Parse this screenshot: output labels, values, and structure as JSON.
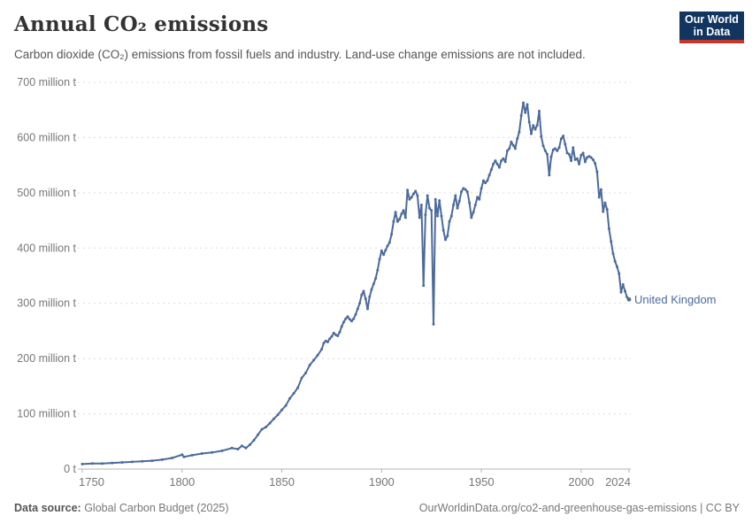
{
  "header": {
    "title": "Annual CO₂ emissions",
    "subtitle": "Carbon dioxide (CO₂) emissions from fossil fuels and industry. Land-use change emissions are not included."
  },
  "logo": {
    "line1": "Our World",
    "line2": "in Data"
  },
  "footer": {
    "source_label": "Data source:",
    "source_value": " Global Carbon Budget (2025)",
    "link": "OurWorldinData.org/co2-and-greenhouse-gas-emissions | CC BY"
  },
  "colors": {
    "line": "#4c6a9c",
    "grid": "#dddddd",
    "axis": "#b3b3b3",
    "tick_text": "#777777"
  },
  "chart_data": {
    "type": "line",
    "title": "Annual CO₂ emissions",
    "xlabel": "",
    "ylabel": "",
    "xlim": [
      1750,
      2024
    ],
    "ylim": [
      0,
      700
    ],
    "xticks": [
      1750,
      1800,
      1850,
      1900,
      1950,
      2000,
      2024
    ],
    "yticks": [
      {
        "value": 0,
        "label": "0 t"
      },
      {
        "value": 100,
        "label": "100 million t"
      },
      {
        "value": 200,
        "label": "200 million t"
      },
      {
        "value": 300,
        "label": "300 million t"
      },
      {
        "value": 400,
        "label": "400 million t"
      },
      {
        "value": 500,
        "label": "500 million t"
      },
      {
        "value": 600,
        "label": "600 million t"
      },
      {
        "value": 700,
        "label": "700 million t"
      }
    ],
    "grid": "horizontal-dashed",
    "legend_position": "end-of-line-label",
    "series": [
      {
        "name": "United Kingdom",
        "unit": "t",
        "points": [
          [
            1750,
            9
          ],
          [
            1755,
            10
          ],
          [
            1760,
            10
          ],
          [
            1765,
            11
          ],
          [
            1770,
            12
          ],
          [
            1775,
            13
          ],
          [
            1780,
            14
          ],
          [
            1785,
            15
          ],
          [
            1790,
            17
          ],
          [
            1795,
            20
          ],
          [
            1800,
            26
          ],
          [
            1801,
            22
          ],
          [
            1805,
            25
          ],
          [
            1810,
            28
          ],
          [
            1815,
            30
          ],
          [
            1820,
            33
          ],
          [
            1825,
            38
          ],
          [
            1828,
            36
          ],
          [
            1830,
            42
          ],
          [
            1832,
            38
          ],
          [
            1834,
            44
          ],
          [
            1836,
            52
          ],
          [
            1838,
            62
          ],
          [
            1840,
            72
          ],
          [
            1842,
            76
          ],
          [
            1844,
            83
          ],
          [
            1846,
            91
          ],
          [
            1848,
            98
          ],
          [
            1850,
            107
          ],
          [
            1852,
            115
          ],
          [
            1854,
            128
          ],
          [
            1856,
            137
          ],
          [
            1858,
            147
          ],
          [
            1860,
            165
          ],
          [
            1862,
            174
          ],
          [
            1864,
            188
          ],
          [
            1866,
            197
          ],
          [
            1868,
            206
          ],
          [
            1870,
            217
          ],
          [
            1871,
            228
          ],
          [
            1872,
            232
          ],
          [
            1873,
            230
          ],
          [
            1874,
            236
          ],
          [
            1875,
            240
          ],
          [
            1876,
            246
          ],
          [
            1877,
            243
          ],
          [
            1878,
            241
          ],
          [
            1879,
            248
          ],
          [
            1880,
            258
          ],
          [
            1881,
            266
          ],
          [
            1882,
            272
          ],
          [
            1883,
            276
          ],
          [
            1884,
            271
          ],
          [
            1885,
            268
          ],
          [
            1886,
            272
          ],
          [
            1887,
            280
          ],
          [
            1888,
            290
          ],
          [
            1889,
            300
          ],
          [
            1890,
            315
          ],
          [
            1891,
            322
          ],
          [
            1892,
            308
          ],
          [
            1893,
            290
          ],
          [
            1894,
            312
          ],
          [
            1895,
            325
          ],
          [
            1896,
            335
          ],
          [
            1897,
            345
          ],
          [
            1898,
            360
          ],
          [
            1899,
            380
          ],
          [
            1900,
            395
          ],
          [
            1901,
            388
          ],
          [
            1902,
            396
          ],
          [
            1903,
            404
          ],
          [
            1904,
            410
          ],
          [
            1905,
            425
          ],
          [
            1906,
            448
          ],
          [
            1907,
            465
          ],
          [
            1908,
            448
          ],
          [
            1909,
            452
          ],
          [
            1910,
            462
          ],
          [
            1911,
            468
          ],
          [
            1912,
            455
          ],
          [
            1913,
            505
          ],
          [
            1914,
            488
          ],
          [
            1915,
            492
          ],
          [
            1916,
            498
          ],
          [
            1917,
            503
          ],
          [
            1918,
            495
          ],
          [
            1919,
            455
          ],
          [
            1920,
            478
          ],
          [
            1921,
            332
          ],
          [
            1922,
            460
          ],
          [
            1923,
            495
          ],
          [
            1924,
            472
          ],
          [
            1925,
            468
          ],
          [
            1926,
            262
          ],
          [
            1927,
            488
          ],
          [
            1928,
            458
          ],
          [
            1929,
            486
          ],
          [
            1930,
            458
          ],
          [
            1931,
            432
          ],
          [
            1932,
            415
          ],
          [
            1933,
            422
          ],
          [
            1934,
            448
          ],
          [
            1935,
            458
          ],
          [
            1936,
            478
          ],
          [
            1937,
            495
          ],
          [
            1938,
            472
          ],
          [
            1939,
            485
          ],
          [
            1940,
            502
          ],
          [
            1941,
            508
          ],
          [
            1942,
            506
          ],
          [
            1943,
            502
          ],
          [
            1944,
            482
          ],
          [
            1945,
            455
          ],
          [
            1946,
            465
          ],
          [
            1947,
            478
          ],
          [
            1948,
            492
          ],
          [
            1949,
            488
          ],
          [
            1950,
            508
          ],
          [
            1951,
            522
          ],
          [
            1952,
            518
          ],
          [
            1953,
            522
          ],
          [
            1954,
            532
          ],
          [
            1955,
            542
          ],
          [
            1956,
            552
          ],
          [
            1957,
            558
          ],
          [
            1958,
            552
          ],
          [
            1959,
            546
          ],
          [
            1960,
            558
          ],
          [
            1961,
            562
          ],
          [
            1962,
            556
          ],
          [
            1963,
            576
          ],
          [
            1964,
            580
          ],
          [
            1965,
            592
          ],
          [
            1966,
            586
          ],
          [
            1967,
            580
          ],
          [
            1968,
            598
          ],
          [
            1969,
            610
          ],
          [
            1970,
            640
          ],
          [
            1971,
            663
          ],
          [
            1972,
            645
          ],
          [
            1973,
            660
          ],
          [
            1974,
            628
          ],
          [
            1975,
            607
          ],
          [
            1976,
            622
          ],
          [
            1977,
            615
          ],
          [
            1978,
            622
          ],
          [
            1979,
            648
          ],
          [
            1980,
            602
          ],
          [
            1981,
            585
          ],
          [
            1982,
            576
          ],
          [
            1983,
            570
          ],
          [
            1984,
            532
          ],
          [
            1985,
            565
          ],
          [
            1986,
            578
          ],
          [
            1987,
            580
          ],
          [
            1988,
            576
          ],
          [
            1989,
            582
          ],
          [
            1990,
            598
          ],
          [
            1991,
            603
          ],
          [
            1992,
            588
          ],
          [
            1993,
            572
          ],
          [
            1994,
            570
          ],
          [
            1995,
            558
          ],
          [
            1996,
            582
          ],
          [
            1997,
            560
          ],
          [
            1998,
            562
          ],
          [
            1999,
            552
          ],
          [
            2000,
            568
          ],
          [
            2001,
            572
          ],
          [
            2002,
            556
          ],
          [
            2003,
            564
          ],
          [
            2004,
            566
          ],
          [
            2005,
            564
          ],
          [
            2006,
            560
          ],
          [
            2007,
            553
          ],
          [
            2008,
            538
          ],
          [
            2009,
            492
          ],
          [
            2010,
            506
          ],
          [
            2011,
            466
          ],
          [
            2012,
            482
          ],
          [
            2013,
            470
          ],
          [
            2014,
            435
          ],
          [
            2015,
            412
          ],
          [
            2016,
            390
          ],
          [
            2017,
            376
          ],
          [
            2018,
            366
          ],
          [
            2019,
            354
          ],
          [
            2020,
            320
          ],
          [
            2021,
            334
          ],
          [
            2022,
            322
          ],
          [
            2023,
            311
          ],
          [
            2024,
            307
          ]
        ]
      }
    ]
  }
}
